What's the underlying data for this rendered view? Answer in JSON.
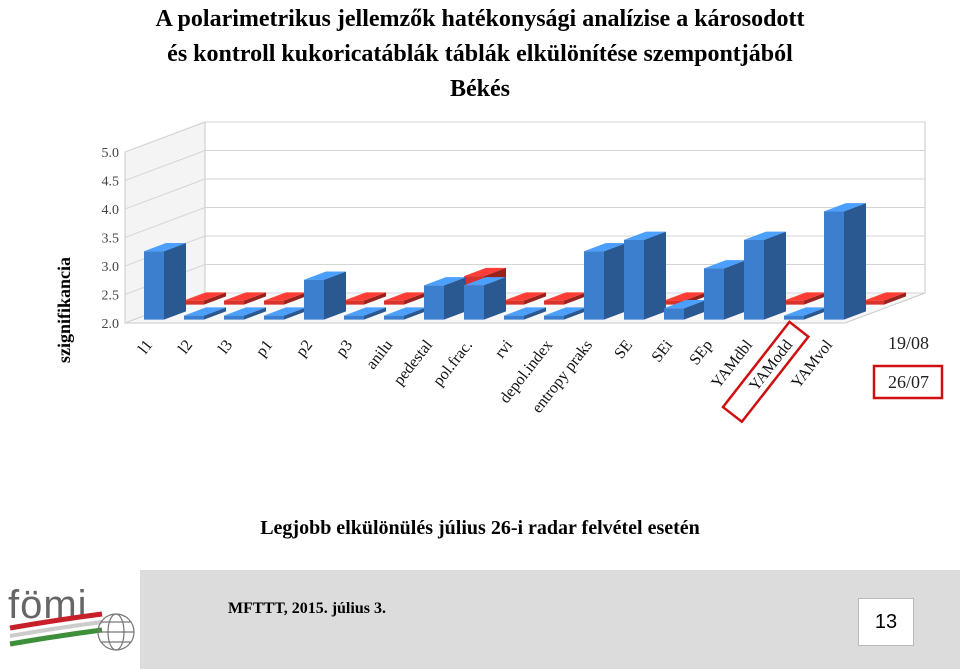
{
  "title_lines": [
    "A polarimetrikus jellemzők hatékonysági analízise a károsodott",
    "és kontroll kukoricatáblák  táblák elkülönítése szempontjából",
    "Békés"
  ],
  "caption": "Legjobb elkülönülés július 26-i radar felvétel esetén",
  "footer": {
    "text": "MFTTT, 2015. július 3.",
    "page_number": "13",
    "logo_text": "fömi"
  },
  "chart_data": {
    "type": "bar",
    "subtype": "3d-clustered-depth",
    "title": "",
    "xlabel": "",
    "ylabel": "szignifikancia",
    "ylim": [
      2.0,
      5.0
    ],
    "yticks": [
      "2.0",
      "2.5",
      "3.0",
      "3.5",
      "4.0",
      "4.5",
      "5.0"
    ],
    "grid": true,
    "legend_position": "right",
    "categories": [
      "l1",
      "l2",
      "l3",
      "p1",
      "p2",
      "p3",
      "anilu",
      "pedestal",
      "pol.frac.",
      "rvi",
      "depol.index",
      "entropy praks",
      "SE",
      "SEi",
      "SEp",
      "YAMdbl",
      "YAModd",
      "YAMvol"
    ],
    "highlighted_category": "YAModd",
    "highlighted_series": "26/07",
    "series": [
      {
        "name": "19/08",
        "color": "#d9312b",
        "values": [
          2.0,
          2.0,
          2.0,
          2.0,
          2.0,
          2.0,
          2.0,
          2.5,
          2.0,
          2.0,
          2.5,
          2.3,
          2.0,
          2.0,
          2.0,
          2.0,
          2.4,
          2.0
        ]
      },
      {
        "name": "26/07",
        "color": "#3c7fcf",
        "values": [
          3.2,
          2.0,
          2.0,
          2.0,
          2.7,
          2.0,
          2.0,
          2.6,
          2.6,
          2.0,
          2.0,
          3.2,
          3.4,
          2.2,
          2.9,
          3.4,
          2.0,
          3.9
        ]
      }
    ]
  },
  "colors": {
    "series_red": "#d9312b",
    "series_blue": "#3c7fcf",
    "highlight": "#d01010",
    "logo_green": "#3d8f3a",
    "logo_red": "#c8202a"
  }
}
